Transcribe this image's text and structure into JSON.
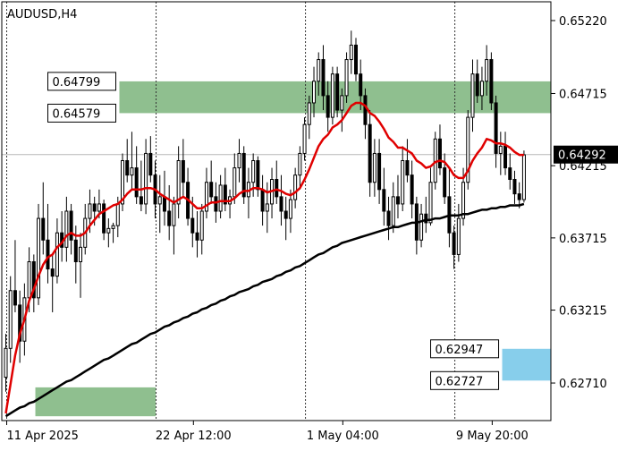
{
  "chart_data": {
    "type": "candlestick",
    "title": "AUDUSD,H4",
    "symbol": "AUDUSD",
    "timeframe": "H4",
    "ylim": [
      0.6245,
      0.6535
    ],
    "y_ticks": [
      0.6522,
      0.64715,
      0.64215,
      0.63715,
      0.63215,
      0.6271
    ],
    "y_tick_labels": [
      "0.65220",
      "0.64715",
      "0.64215",
      "0.63715",
      "0.63215",
      "0.62710"
    ],
    "x_tick_labels": [
      "11 Apr 2025",
      "22 Apr 12:00",
      "1 May 04:00",
      "9 May 20:00"
    ],
    "x_tick_bar_index": [
      0,
      40,
      72,
      104
    ],
    "vertical_dashed_bar_index": [
      0,
      32,
      64,
      96
    ],
    "current_price": 0.64292,
    "current_price_label": "0.64292",
    "zones": [
      {
        "kind": "resistance",
        "top": 0.64799,
        "bottom": 0.64579,
        "top_label": "0.64799",
        "bottom_label": "0.64579",
        "from_bar": 25,
        "color": "#8fbf8f"
      },
      {
        "kind": "support",
        "top": 0.62947,
        "bottom": 0.62727,
        "top_label": "0.62947",
        "bottom_label": "0.62727",
        "from_bar": 107,
        "color": "#87ceeb"
      },
      {
        "kind": "origin",
        "top": 0.6268,
        "bottom": 0.6248,
        "from_bar": 7,
        "to_bar": 32,
        "color": "#8fbf8f"
      }
    ],
    "ma_fast_color": "#e00000",
    "ma_slow_color": "#000000",
    "ohlc": [
      [
        0.6275,
        0.6305,
        0.6265,
        0.6295
      ],
      [
        0.6295,
        0.6345,
        0.6285,
        0.6335
      ],
      [
        0.6335,
        0.637,
        0.632,
        0.6325
      ],
      [
        0.6325,
        0.6335,
        0.6285,
        0.63
      ],
      [
        0.63,
        0.634,
        0.629,
        0.633
      ],
      [
        0.633,
        0.6365,
        0.632,
        0.6355
      ],
      [
        0.6355,
        0.636,
        0.632,
        0.633
      ],
      [
        0.633,
        0.6395,
        0.6325,
        0.6385
      ],
      [
        0.6385,
        0.641,
        0.636,
        0.637
      ],
      [
        0.637,
        0.6395,
        0.634,
        0.635
      ],
      [
        0.635,
        0.636,
        0.632,
        0.6345
      ],
      [
        0.6345,
        0.6385,
        0.634,
        0.6375
      ],
      [
        0.6375,
        0.639,
        0.6355,
        0.6365
      ],
      [
        0.6365,
        0.64,
        0.6355,
        0.639
      ],
      [
        0.639,
        0.6395,
        0.636,
        0.637
      ],
      [
        0.637,
        0.638,
        0.634,
        0.6355
      ],
      [
        0.6355,
        0.6375,
        0.633,
        0.6365
      ],
      [
        0.6365,
        0.6395,
        0.636,
        0.6385
      ],
      [
        0.6385,
        0.6405,
        0.6375,
        0.6395
      ],
      [
        0.6395,
        0.64,
        0.638,
        0.639
      ],
      [
        0.639,
        0.6405,
        0.6385,
        0.6395
      ],
      [
        0.6395,
        0.6398,
        0.637,
        0.6375
      ],
      [
        0.6375,
        0.6385,
        0.6365,
        0.6378
      ],
      [
        0.6378,
        0.6382,
        0.6368,
        0.638
      ],
      [
        0.638,
        0.64,
        0.6372,
        0.6395
      ],
      [
        0.6395,
        0.643,
        0.639,
        0.6425
      ],
      [
        0.6425,
        0.644,
        0.641,
        0.6415
      ],
      [
        0.6415,
        0.6445,
        0.6405,
        0.642
      ],
      [
        0.642,
        0.6435,
        0.6395,
        0.64
      ],
      [
        0.64,
        0.6425,
        0.639,
        0.6395
      ],
      [
        0.6395,
        0.644,
        0.6388,
        0.643
      ],
      [
        0.643,
        0.6442,
        0.641,
        0.6415
      ],
      [
        0.6415,
        0.6425,
        0.6385,
        0.6395
      ],
      [
        0.6395,
        0.6415,
        0.6375,
        0.64
      ],
      [
        0.64,
        0.6418,
        0.638,
        0.639
      ],
      [
        0.639,
        0.6408,
        0.637,
        0.638
      ],
      [
        0.638,
        0.64,
        0.636,
        0.6395
      ],
      [
        0.6395,
        0.6435,
        0.6385,
        0.6425
      ],
      [
        0.6425,
        0.644,
        0.64,
        0.641
      ],
      [
        0.641,
        0.642,
        0.638,
        0.6385
      ],
      [
        0.6385,
        0.64,
        0.6365,
        0.6375
      ],
      [
        0.6375,
        0.639,
        0.6358,
        0.637
      ],
      [
        0.637,
        0.6395,
        0.636,
        0.639
      ],
      [
        0.639,
        0.642,
        0.6385,
        0.641
      ],
      [
        0.641,
        0.6425,
        0.6395,
        0.64
      ],
      [
        0.64,
        0.641,
        0.6382,
        0.639
      ],
      [
        0.639,
        0.6415,
        0.6385,
        0.6408
      ],
      [
        0.6408,
        0.642,
        0.639,
        0.6395
      ],
      [
        0.6395,
        0.6405,
        0.6385,
        0.64
      ],
      [
        0.64,
        0.643,
        0.6395,
        0.642
      ],
      [
        0.642,
        0.644,
        0.641,
        0.643
      ],
      [
        0.643,
        0.6435,
        0.6395,
        0.64
      ],
      [
        0.64,
        0.642,
        0.6385,
        0.641
      ],
      [
        0.641,
        0.643,
        0.64,
        0.6425
      ],
      [
        0.6425,
        0.6428,
        0.64,
        0.6405
      ],
      [
        0.6405,
        0.6415,
        0.638,
        0.639
      ],
      [
        0.639,
        0.641,
        0.6375,
        0.6395
      ],
      [
        0.6395,
        0.642,
        0.6385,
        0.6412
      ],
      [
        0.6412,
        0.6425,
        0.6395,
        0.64
      ],
      [
        0.64,
        0.6415,
        0.638,
        0.639
      ],
      [
        0.639,
        0.64,
        0.637,
        0.6385
      ],
      [
        0.6385,
        0.6405,
        0.6375,
        0.6398
      ],
      [
        0.6398,
        0.642,
        0.6392,
        0.6415
      ],
      [
        0.6415,
        0.6435,
        0.6405,
        0.643
      ],
      [
        0.643,
        0.6455,
        0.6425,
        0.645
      ],
      [
        0.645,
        0.647,
        0.644,
        0.6465
      ],
      [
        0.6465,
        0.649,
        0.6455,
        0.648
      ],
      [
        0.648,
        0.65,
        0.647,
        0.6495
      ],
      [
        0.6495,
        0.6505,
        0.646,
        0.647
      ],
      [
        0.647,
        0.648,
        0.6445,
        0.6455
      ],
      [
        0.6455,
        0.649,
        0.645,
        0.6485
      ],
      [
        0.6485,
        0.649,
        0.6455,
        0.646
      ],
      [
        0.646,
        0.6475,
        0.6445,
        0.647
      ],
      [
        0.647,
        0.65,
        0.6465,
        0.6495
      ],
      [
        0.6495,
        0.6515,
        0.6485,
        0.6505
      ],
      [
        0.6505,
        0.651,
        0.648,
        0.6485
      ],
      [
        0.6485,
        0.6495,
        0.646,
        0.647
      ],
      [
        0.647,
        0.6475,
        0.644,
        0.645
      ],
      [
        0.645,
        0.646,
        0.64,
        0.641
      ],
      [
        0.641,
        0.644,
        0.64,
        0.643
      ],
      [
        0.643,
        0.644,
        0.6395,
        0.6405
      ],
      [
        0.6405,
        0.642,
        0.638,
        0.639
      ],
      [
        0.639,
        0.64,
        0.637,
        0.638
      ],
      [
        0.638,
        0.641,
        0.6375,
        0.64
      ],
      [
        0.64,
        0.6415,
        0.6385,
        0.6395
      ],
      [
        0.6395,
        0.6435,
        0.639,
        0.6425
      ],
      [
        0.6425,
        0.644,
        0.641,
        0.6415
      ],
      [
        0.6415,
        0.6425,
        0.6385,
        0.6395
      ],
      [
        0.6395,
        0.64,
        0.636,
        0.637
      ],
      [
        0.637,
        0.6395,
        0.6365,
        0.6388
      ],
      [
        0.6388,
        0.64,
        0.6375,
        0.6382
      ],
      [
        0.6382,
        0.642,
        0.638,
        0.641
      ],
      [
        0.641,
        0.6445,
        0.6405,
        0.644
      ],
      [
        0.644,
        0.645,
        0.6415,
        0.642
      ],
      [
        0.642,
        0.643,
        0.6395,
        0.64
      ],
      [
        0.64,
        0.642,
        0.6365,
        0.6375
      ],
      [
        0.6375,
        0.638,
        0.635,
        0.636
      ],
      [
        0.636,
        0.6395,
        0.6355,
        0.6385
      ],
      [
        0.6385,
        0.642,
        0.638,
        0.641
      ],
      [
        0.641,
        0.646,
        0.6405,
        0.6455
      ],
      [
        0.6455,
        0.6495,
        0.6445,
        0.6485
      ],
      [
        0.6485,
        0.6495,
        0.6465,
        0.647
      ],
      [
        0.647,
        0.649,
        0.646,
        0.648
      ],
      [
        0.648,
        0.6505,
        0.647,
        0.6495
      ],
      [
        0.6495,
        0.65,
        0.646,
        0.6465
      ],
      [
        0.6465,
        0.647,
        0.642,
        0.643
      ],
      [
        0.643,
        0.6445,
        0.6415,
        0.6435
      ],
      [
        0.6435,
        0.6445,
        0.6415,
        0.642
      ],
      [
        0.642,
        0.643,
        0.6405,
        0.6412
      ],
      [
        0.6412,
        0.6418,
        0.6395,
        0.6402
      ],
      [
        0.6402,
        0.641,
        0.6392,
        0.6398
      ],
      [
        0.6398,
        0.6432,
        0.6396,
        0.6429
      ]
    ],
    "ma_fast": [
      0.625,
      0.627,
      0.629,
      0.6305,
      0.6315,
      0.6328,
      0.6336,
      0.6345,
      0.6353,
      0.6358,
      0.636,
      0.6365,
      0.6368,
      0.6373,
      0.6375,
      0.6373,
      0.6373,
      0.6375,
      0.638,
      0.6384,
      0.6388,
      0.639,
      0.6392,
      0.6394,
      0.6395,
      0.6398,
      0.6402,
      0.6405,
      0.6405,
      0.6405,
      0.6406,
      0.6406,
      0.6405,
      0.6402,
      0.64,
      0.6398,
      0.6396,
      0.6398,
      0.64,
      0.6398,
      0.6395,
      0.6392,
      0.6392,
      0.6394,
      0.6396,
      0.6396,
      0.6397,
      0.6397,
      0.6397,
      0.6399,
      0.6402,
      0.6404,
      0.6404,
      0.6406,
      0.6406,
      0.6405,
      0.6403,
      0.6404,
      0.6405,
      0.6404,
      0.6402,
      0.6401,
      0.6403,
      0.6406,
      0.6412,
      0.6419,
      0.6427,
      0.6435,
      0.644,
      0.6443,
      0.6448,
      0.645,
      0.6453,
      0.6458,
      0.6463,
      0.6465,
      0.6465,
      0.6463,
      0.6458,
      0.6456,
      0.6452,
      0.6447,
      0.6441,
      0.6438,
      0.6434,
      0.6434,
      0.6432,
      0.643,
      0.6425,
      0.6423,
      0.642,
      0.6421,
      0.6424,
      0.6425,
      0.6424,
      0.642,
      0.6415,
      0.6413,
      0.6413,
      0.6418,
      0.6425,
      0.643,
      0.6434,
      0.644,
      0.6439,
      0.6437,
      0.6437,
      0.6436,
      0.6434,
      0.6431,
      0.6429,
      0.6429
    ],
    "ma_slow": [
      0.6248,
      0.625,
      0.6252,
      0.6254,
      0.6255,
      0.6257,
      0.6258,
      0.626,
      0.6262,
      0.6264,
      0.6266,
      0.6268,
      0.627,
      0.6272,
      0.6273,
      0.6275,
      0.6277,
      0.6279,
      0.6281,
      0.6283,
      0.6285,
      0.6287,
      0.6288,
      0.629,
      0.6292,
      0.6294,
      0.6296,
      0.6298,
      0.6299,
      0.6301,
      0.6303,
      0.6305,
      0.6306,
      0.6308,
      0.631,
      0.6311,
      0.6313,
      0.6314,
      0.6316,
      0.6317,
      0.6319,
      0.632,
      0.6322,
      0.6323,
      0.6325,
      0.6326,
      0.6328,
      0.6329,
      0.6331,
      0.6332,
      0.6334,
      0.6335,
      0.6336,
      0.6338,
      0.6339,
      0.6341,
      0.6342,
      0.6343,
      0.6345,
      0.6346,
      0.6348,
      0.6349,
      0.6351,
      0.6352,
      0.6354,
      0.6356,
      0.6358,
      0.636,
      0.6361,
      0.6363,
      0.6365,
      0.6366,
      0.6368,
      0.6369,
      0.637,
      0.6371,
      0.6372,
      0.6373,
      0.6374,
      0.6375,
      0.6376,
      0.6377,
      0.6378,
      0.6379,
      0.6379,
      0.638,
      0.6381,
      0.6382,
      0.6382,
      0.6383,
      0.6384,
      0.6384,
      0.6385,
      0.6385,
      0.6386,
      0.6387,
      0.6387,
      0.6387,
      0.6388,
      0.6388,
      0.6389,
      0.639,
      0.6391,
      0.6391,
      0.6392,
      0.6392,
      0.6393,
      0.6393,
      0.6394,
      0.6394,
      0.6394,
      0.6395
    ]
  }
}
